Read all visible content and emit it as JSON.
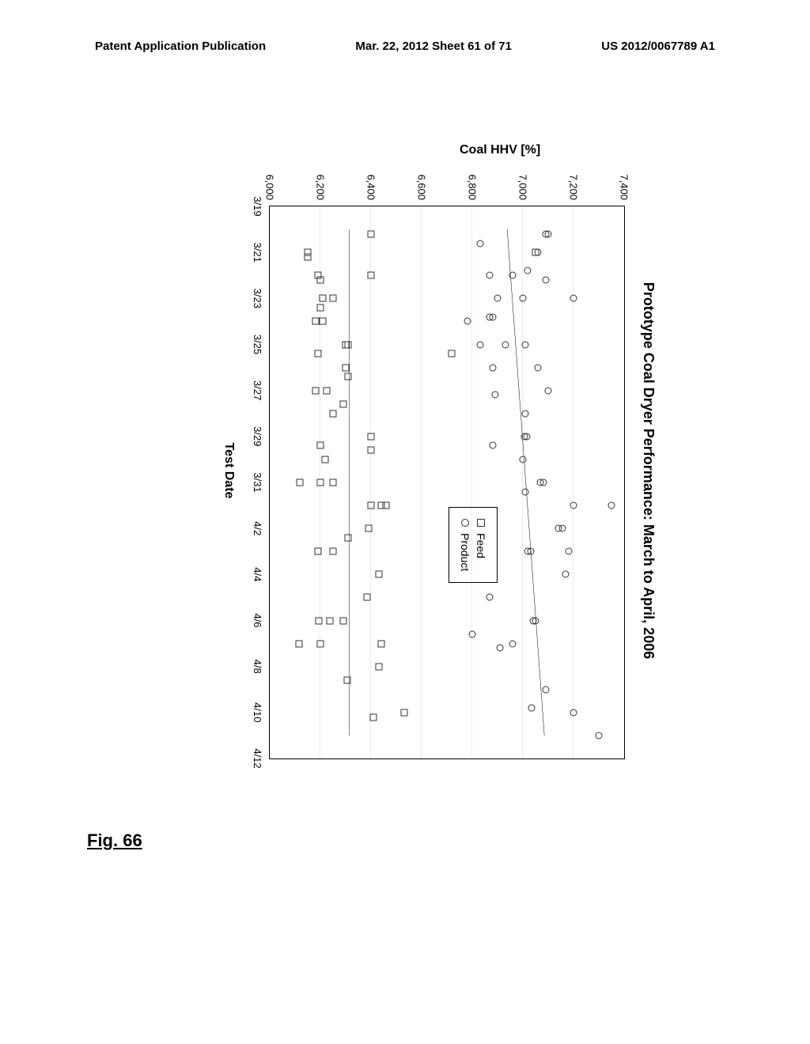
{
  "header": {
    "left": "Patent Application Publication",
    "center": "Mar. 22, 2012  Sheet 61 of 71",
    "right": "US 2012/0067789 A1"
  },
  "figure_label": "Fig. 66",
  "chart": {
    "type": "scatter",
    "title": "Prototype Coal Dryer Performance: March to April, 2006",
    "xlabel": "Test Date",
    "ylabel": "Coal HHV [%]",
    "title_fontsize": 18,
    "label_fontsize": 16,
    "tick_fontsize": 13,
    "ylim": [
      6000,
      7400
    ],
    "ytick_step": 200,
    "yticks": [
      6000,
      6200,
      6400,
      6600,
      6800,
      7000,
      7200,
      7400
    ],
    "xticks": [
      "3/19",
      "3/21",
      "3/23",
      "3/25",
      "3/27",
      "3/29",
      "3/31",
      "4/2",
      "4/4",
      "4/6",
      "4/8",
      "4/10",
      "4/12"
    ],
    "x_index_range": [
      0,
      12
    ],
    "background_color": "#ffffff",
    "border_color": "#000000",
    "marker_border_color": "#333333",
    "legend": {
      "items": [
        {
          "marker": "square",
          "label": "Feed"
        },
        {
          "marker": "circle",
          "label": "Product"
        }
      ]
    },
    "series": [
      {
        "name": "Feed",
        "marker": "square",
        "data": [
          {
            "x": 0.6,
            "y": 6400
          },
          {
            "x": 1.0,
            "y": 7050
          },
          {
            "x": 1.0,
            "y": 6150
          },
          {
            "x": 1.1,
            "y": 6150
          },
          {
            "x": 1.5,
            "y": 6400
          },
          {
            "x": 1.5,
            "y": 6190
          },
          {
            "x": 1.6,
            "y": 6200
          },
          {
            "x": 2.0,
            "y": 6250
          },
          {
            "x": 2.0,
            "y": 6210
          },
          {
            "x": 2.2,
            "y": 6200
          },
          {
            "x": 2.5,
            "y": 6180
          },
          {
            "x": 2.5,
            "y": 6210
          },
          {
            "x": 3.0,
            "y": 6300
          },
          {
            "x": 3.0,
            "y": 6310
          },
          {
            "x": 3.2,
            "y": 6190
          },
          {
            "x": 3.2,
            "y": 6720
          },
          {
            "x": 3.5,
            "y": 6300
          },
          {
            "x": 3.7,
            "y": 6310
          },
          {
            "x": 4.0,
            "y": 6225
          },
          {
            "x": 4.0,
            "y": 6180
          },
          {
            "x": 4.3,
            "y": 6290
          },
          {
            "x": 4.5,
            "y": 6250
          },
          {
            "x": 5.0,
            "y": 6400
          },
          {
            "x": 5.2,
            "y": 6200
          },
          {
            "x": 5.3,
            "y": 6400
          },
          {
            "x": 5.5,
            "y": 6220
          },
          {
            "x": 6.0,
            "y": 6250
          },
          {
            "x": 6.0,
            "y": 6200
          },
          {
            "x": 6.0,
            "y": 6120
          },
          {
            "x": 6.5,
            "y": 6460
          },
          {
            "x": 6.5,
            "y": 6440
          },
          {
            "x": 6.5,
            "y": 6400
          },
          {
            "x": 7.0,
            "y": 6390
          },
          {
            "x": 7.2,
            "y": 6310
          },
          {
            "x": 7.5,
            "y": 6250
          },
          {
            "x": 7.5,
            "y": 6190
          },
          {
            "x": 8.0,
            "y": 6430
          },
          {
            "x": 8.5,
            "y": 6385
          },
          {
            "x": 9.0,
            "y": 6290
          },
          {
            "x": 9.0,
            "y": 6238
          },
          {
            "x": 9.0,
            "y": 6195
          },
          {
            "x": 9.5,
            "y": 6440
          },
          {
            "x": 9.5,
            "y": 6200
          },
          {
            "x": 9.5,
            "y": 6115
          },
          {
            "x": 10.0,
            "y": 6430
          },
          {
            "x": 10.3,
            "y": 6305
          },
          {
            "x": 11.0,
            "y": 6530
          },
          {
            "x": 11.1,
            "y": 6410
          }
        ],
        "trend": [
          {
            "x": 0.5,
            "y": 6315
          },
          {
            "x": 11.5,
            "y": 6315
          }
        ]
      },
      {
        "name": "Product",
        "marker": "circle",
        "data": [
          {
            "x": 0.6,
            "y": 7090
          },
          {
            "x": 0.6,
            "y": 7100
          },
          {
            "x": 0.8,
            "y": 6830
          },
          {
            "x": 1.0,
            "y": 7060
          },
          {
            "x": 1.4,
            "y": 7020
          },
          {
            "x": 1.5,
            "y": 6960
          },
          {
            "x": 1.5,
            "y": 6870
          },
          {
            "x": 1.6,
            "y": 7090
          },
          {
            "x": 2.0,
            "y": 7200
          },
          {
            "x": 2.0,
            "y": 7000
          },
          {
            "x": 2.0,
            "y": 6900
          },
          {
            "x": 2.4,
            "y": 6880
          },
          {
            "x": 2.4,
            "y": 6870
          },
          {
            "x": 2.5,
            "y": 6780
          },
          {
            "x": 3.0,
            "y": 7010
          },
          {
            "x": 3.0,
            "y": 6930
          },
          {
            "x": 3.0,
            "y": 6830
          },
          {
            "x": 3.5,
            "y": 7060
          },
          {
            "x": 3.5,
            "y": 6880
          },
          {
            "x": 4.0,
            "y": 7100
          },
          {
            "x": 4.1,
            "y": 6890
          },
          {
            "x": 4.5,
            "y": 7010
          },
          {
            "x": 5.0,
            "y": 7015
          },
          {
            "x": 5.0,
            "y": 7005
          },
          {
            "x": 5.2,
            "y": 6880
          },
          {
            "x": 5.5,
            "y": 7000
          },
          {
            "x": 6.0,
            "y": 7080
          },
          {
            "x": 6.0,
            "y": 7070
          },
          {
            "x": 6.2,
            "y": 7010
          },
          {
            "x": 6.5,
            "y": 7200
          },
          {
            "x": 6.5,
            "y": 7350
          },
          {
            "x": 7.0,
            "y": 7155
          },
          {
            "x": 7.0,
            "y": 7140
          },
          {
            "x": 7.5,
            "y": 7180
          },
          {
            "x": 7.5,
            "y": 7030
          },
          {
            "x": 7.5,
            "y": 7020
          },
          {
            "x": 8.0,
            "y": 7170
          },
          {
            "x": 8.5,
            "y": 6870
          },
          {
            "x": 9.0,
            "y": 7040
          },
          {
            "x": 9.0,
            "y": 7050
          },
          {
            "x": 9.3,
            "y": 6800
          },
          {
            "x": 9.5,
            "y": 6960
          },
          {
            "x": 9.6,
            "y": 6910
          },
          {
            "x": 10.5,
            "y": 7090
          },
          {
            "x": 10.9,
            "y": 7035
          },
          {
            "x": 11.0,
            "y": 7200
          },
          {
            "x": 11.5,
            "y": 7300
          }
        ],
        "trend": [
          {
            "x": 0.5,
            "y": 6938
          },
          {
            "x": 11.5,
            "y": 7085
          }
        ]
      }
    ]
  }
}
